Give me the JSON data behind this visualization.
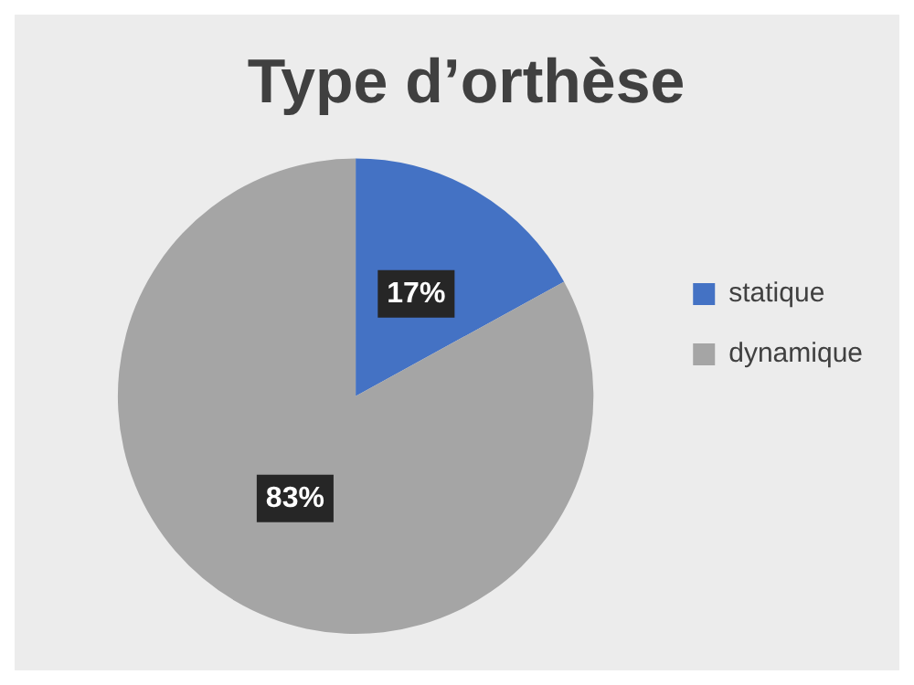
{
  "chart_data": {
    "type": "pie",
    "title": "Type d’orthèse",
    "categories": [
      "statique",
      "dynamique"
    ],
    "values": [
      17,
      83
    ],
    "colors": [
      "#4472c4",
      "#a5a5a5"
    ],
    "value_labels": [
      "17%",
      "83%"
    ],
    "legend": "right"
  }
}
